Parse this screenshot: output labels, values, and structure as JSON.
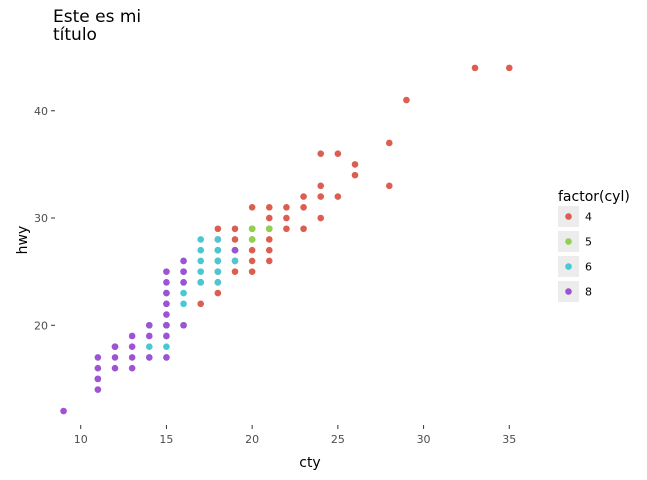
{
  "chart_data": {
    "type": "scatter",
    "title_lines": [
      "Este es mi",
      "título"
    ],
    "xlabel": "cty",
    "ylabel": "hwy",
    "xlim": [
      8.5,
      36.5
    ],
    "ylim": [
      10.7,
      45.2
    ],
    "xticks": [
      10,
      15,
      20,
      25,
      30,
      35
    ],
    "yticks": [
      20,
      30,
      40
    ],
    "grid": false,
    "legend": {
      "title": "factor(cyl)",
      "placement": "right"
    },
    "series": [
      {
        "name": "4",
        "color": "#dc5e50",
        "points": [
          [
            33,
            44
          ],
          [
            35,
            44
          ],
          [
            29,
            41
          ],
          [
            28,
            37
          ],
          [
            24,
            36
          ],
          [
            25,
            36
          ],
          [
            26,
            35
          ],
          [
            26,
            34
          ],
          [
            24,
            33
          ],
          [
            28,
            33
          ],
          [
            23,
            32
          ],
          [
            24,
            32
          ],
          [
            25,
            32
          ],
          [
            22,
            31
          ],
          [
            20,
            31
          ],
          [
            21,
            31
          ],
          [
            23,
            31
          ],
          [
            24,
            30
          ],
          [
            21,
            30
          ],
          [
            22,
            30
          ],
          [
            18,
            29
          ],
          [
            19,
            29
          ],
          [
            20,
            29
          ],
          [
            21,
            29
          ],
          [
            22,
            29
          ],
          [
            23,
            29
          ],
          [
            19,
            28
          ],
          [
            20,
            28
          ],
          [
            21,
            28
          ],
          [
            18,
            28
          ],
          [
            19,
            27
          ],
          [
            20,
            27
          ],
          [
            21,
            27
          ],
          [
            18,
            27
          ],
          [
            18,
            26
          ],
          [
            19,
            26
          ],
          [
            20,
            26
          ],
          [
            21,
            26
          ],
          [
            18,
            25
          ],
          [
            19,
            25
          ],
          [
            20,
            25
          ],
          [
            18,
            24
          ],
          [
            17,
            24
          ],
          [
            18,
            23
          ],
          [
            17,
            22
          ],
          [
            15,
            20
          ]
        ]
      },
      {
        "name": "5",
        "color": "#8ed24f",
        "points": [
          [
            20,
            28
          ],
          [
            20,
            29
          ],
          [
            21,
            29
          ]
        ]
      },
      {
        "name": "6",
        "color": "#4ac8d2",
        "points": [
          [
            19,
            27
          ],
          [
            18,
            27
          ],
          [
            17,
            27
          ],
          [
            18,
            26
          ],
          [
            17,
            26
          ],
          [
            16,
            26
          ],
          [
            19,
            26
          ],
          [
            18,
            25
          ],
          [
            17,
            25
          ],
          [
            16,
            25
          ],
          [
            18,
            24
          ],
          [
            17,
            24
          ],
          [
            16,
            24
          ],
          [
            15,
            23
          ],
          [
            16,
            23
          ],
          [
            15,
            22
          ],
          [
            16,
            22
          ],
          [
            14,
            20
          ],
          [
            15,
            20
          ],
          [
            16,
            20
          ],
          [
            15,
            19
          ],
          [
            14,
            18
          ],
          [
            15,
            18
          ],
          [
            14,
            17
          ],
          [
            15,
            17
          ],
          [
            17,
            28
          ],
          [
            18,
            28
          ],
          [
            19,
            27
          ],
          [
            18,
            26
          ]
        ]
      },
      {
        "name": "8",
        "color": "#9e52d4",
        "points": [
          [
            9,
            12
          ],
          [
            11,
            14
          ],
          [
            11,
            15
          ],
          [
            11,
            16
          ],
          [
            11,
            17
          ],
          [
            12,
            16
          ],
          [
            12,
            17
          ],
          [
            12,
            18
          ],
          [
            13,
            16
          ],
          [
            13,
            17
          ],
          [
            13,
            18
          ],
          [
            13,
            19
          ],
          [
            14,
            17
          ],
          [
            14,
            19
          ],
          [
            14,
            20
          ],
          [
            15,
            17
          ],
          [
            15,
            19
          ],
          [
            15,
            20
          ],
          [
            15,
            21
          ],
          [
            15,
            22
          ],
          [
            15,
            23
          ],
          [
            15,
            24
          ],
          [
            15,
            25
          ],
          [
            16,
            24
          ],
          [
            16,
            25
          ],
          [
            16,
            26
          ],
          [
            16,
            20
          ],
          [
            19,
            27
          ],
          [
            12,
            18
          ],
          [
            11,
            15
          ]
        ]
      }
    ]
  }
}
